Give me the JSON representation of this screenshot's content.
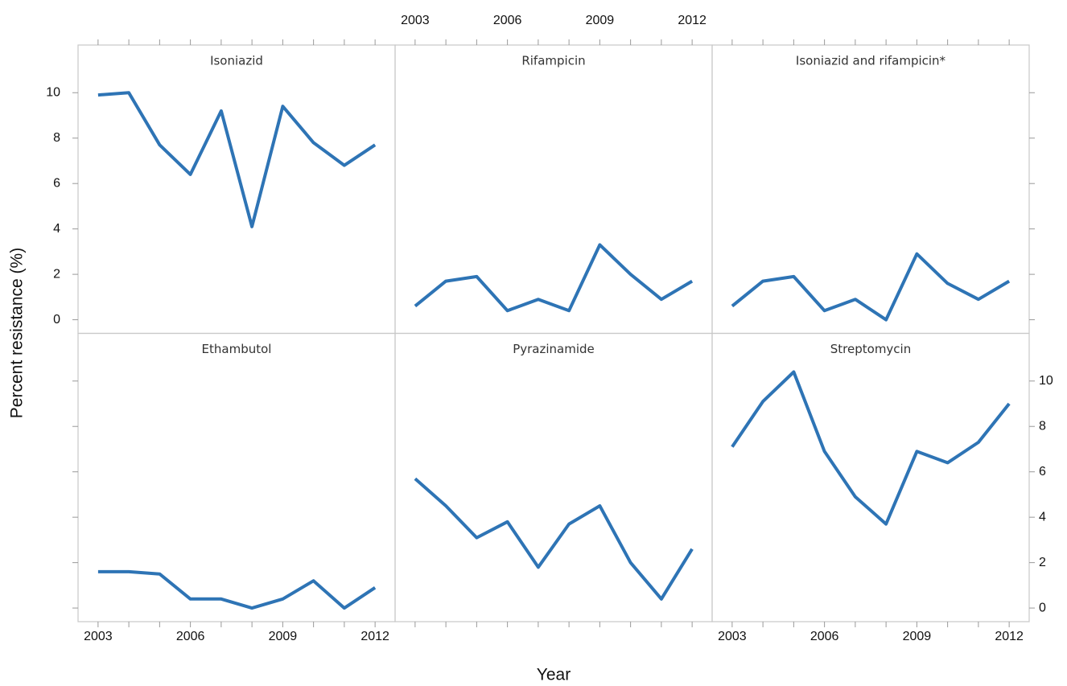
{
  "chart_data": {
    "type": "line",
    "xlabel": "Year",
    "ylabel": "Percent resistance (%)",
    "color": "#2e74b5",
    "x": [
      2003,
      2004,
      2005,
      2006,
      2007,
      2008,
      2009,
      2010,
      2011,
      2012
    ],
    "xlim": [
      2002.35,
      2012.65
    ],
    "xticks": [
      2003,
      2006,
      2009,
      2012
    ],
    "ylim": [
      -0.6,
      12.1
    ],
    "yticks": [
      0,
      2,
      4,
      6,
      8,
      10
    ],
    "panels": [
      {
        "title": "Isoniazid",
        "values": [
          9.9,
          10.0,
          7.7,
          6.4,
          9.2,
          4.1,
          9.4,
          7.8,
          6.8,
          7.7
        ]
      },
      {
        "title": "Rifampicin",
        "values": [
          0.6,
          1.7,
          1.9,
          0.4,
          0.9,
          0.4,
          3.3,
          2.0,
          0.9,
          1.7
        ]
      },
      {
        "title": "Isoniazid and rifampicin*",
        "values": [
          0.6,
          1.7,
          1.9,
          0.4,
          0.9,
          0.0,
          2.9,
          1.6,
          0.9,
          1.7
        ]
      },
      {
        "title": "Ethambutol",
        "values": [
          1.6,
          1.6,
          1.5,
          0.4,
          0.4,
          0.0,
          0.4,
          1.2,
          0.0,
          0.9
        ]
      },
      {
        "title": "Pyrazinamide",
        "values": [
          5.7,
          4.5,
          3.1,
          3.8,
          1.8,
          3.7,
          4.5,
          2.0,
          0.4,
          2.6
        ]
      },
      {
        "title": "Streptomycin",
        "values": [
          7.1,
          9.1,
          10.4,
          6.9,
          4.9,
          3.7,
          6.9,
          6.4,
          7.3,
          9.0
        ]
      }
    ]
  }
}
